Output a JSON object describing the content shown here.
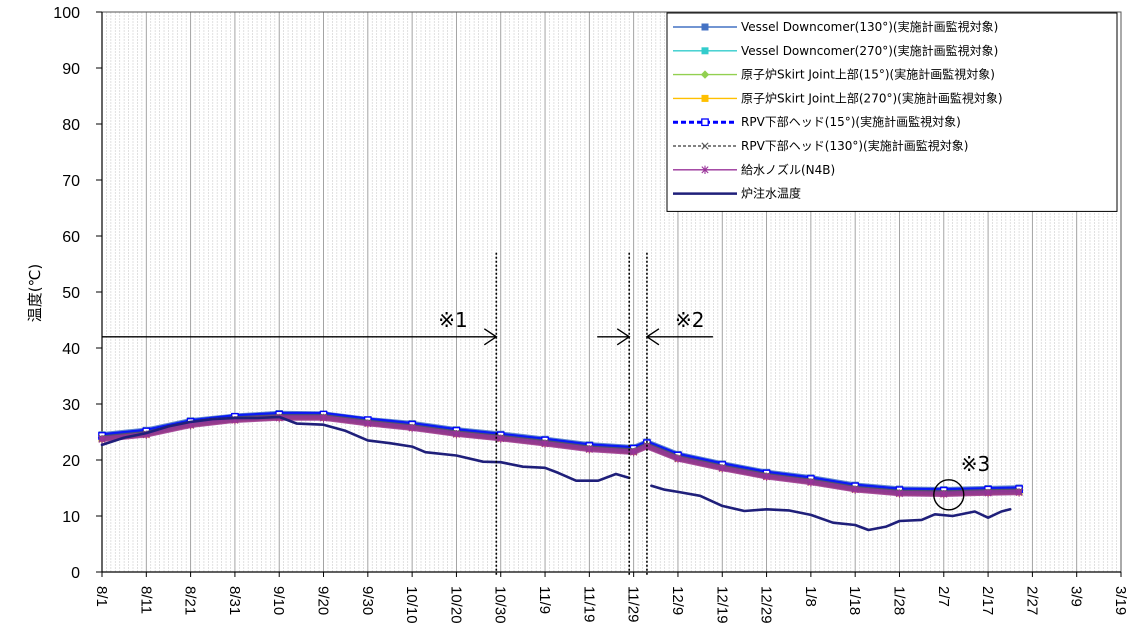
{
  "chart_data": {
    "type": "line",
    "title": "",
    "ylabel": "温度(℃)",
    "xlabel": "",
    "ylim": [
      0,
      100
    ],
    "yticks": [
      0,
      10,
      20,
      30,
      40,
      50,
      60,
      70,
      80,
      90,
      100
    ],
    "xrange": [
      "8/1",
      "3/19"
    ],
    "xtick_labels": [
      "8/1",
      "8/11",
      "8/21",
      "8/31",
      "9/10",
      "9/20",
      "9/30",
      "10/10",
      "10/20",
      "10/30",
      "11/9",
      "11/19",
      "11/29",
      "12/9",
      "12/19",
      "12/29",
      "1/8",
      "1/18",
      "1/28",
      "2/7",
      "2/17",
      "2/27",
      "3/9",
      "3/19"
    ],
    "grid": "vertical daily",
    "legend_position": "top-right",
    "series": [
      {
        "name": "Vessel Downcomer(130°)(実施計画監視対象)",
        "color": "#4472c4",
        "marker": "square-small",
        "points": [
          [
            "8/1",
            24.5
          ],
          [
            "8/11",
            25.3
          ],
          [
            "8/21",
            27.0
          ],
          [
            "8/31",
            27.8
          ],
          [
            "9/10",
            28.3
          ],
          [
            "9/20",
            28.2
          ],
          [
            "9/30",
            27.2
          ],
          [
            "10/10",
            26.5
          ],
          [
            "10/20",
            25.4
          ],
          [
            "10/30",
            24.6
          ],
          [
            "11/9",
            23.7
          ],
          [
            "11/19",
            22.7
          ],
          [
            "11/29",
            22.2
          ],
          [
            "12/2",
            23.2
          ],
          [
            "12/9",
            21.0
          ],
          [
            "12/19",
            19.3
          ],
          [
            "12/29",
            17.8
          ],
          [
            "1/8",
            16.8
          ],
          [
            "1/18",
            15.5
          ],
          [
            "1/28",
            14.8
          ],
          [
            "2/7",
            14.7
          ],
          [
            "2/17",
            14.9
          ],
          [
            "2/24",
            15.0
          ]
        ]
      },
      {
        "name": "Vessel Downcomer(270°)(実施計画監視対象)",
        "color": "#33cccc",
        "marker": "square-small",
        "points": [
          [
            "8/1",
            24.2
          ],
          [
            "8/11",
            25.0
          ],
          [
            "8/21",
            26.8
          ],
          [
            "8/31",
            27.6
          ],
          [
            "9/10",
            28.0
          ],
          [
            "9/20",
            28.0
          ],
          [
            "9/30",
            27.0
          ],
          [
            "10/10",
            26.2
          ],
          [
            "10/20",
            25.1
          ],
          [
            "10/30",
            24.3
          ],
          [
            "11/9",
            23.4
          ],
          [
            "11/19",
            22.4
          ],
          [
            "11/29",
            21.9
          ],
          [
            "12/2",
            22.9
          ],
          [
            "12/9",
            20.7
          ],
          [
            "12/19",
            19.0
          ],
          [
            "12/29",
            17.5
          ],
          [
            "1/8",
            16.5
          ],
          [
            "1/18",
            15.2
          ],
          [
            "1/28",
            14.5
          ],
          [
            "2/7",
            14.4
          ],
          [
            "2/17",
            14.6
          ],
          [
            "2/24",
            14.7
          ]
        ]
      },
      {
        "name": "原子炉Skirt Joint上部(15°)(実施計画監視対象)",
        "color": "#92d050",
        "marker": "diamond",
        "points": [
          [
            "8/1",
            24.0
          ],
          [
            "8/11",
            24.8
          ],
          [
            "8/21",
            26.5
          ],
          [
            "8/31",
            27.4
          ],
          [
            "9/10",
            27.8
          ],
          [
            "9/20",
            27.8
          ],
          [
            "9/30",
            26.8
          ],
          [
            "10/10",
            26.0
          ],
          [
            "10/20",
            24.9
          ],
          [
            "10/30",
            24.1
          ],
          [
            "11/9",
            23.2
          ],
          [
            "11/19",
            22.2
          ],
          [
            "11/29",
            21.7
          ],
          [
            "12/2",
            22.7
          ],
          [
            "12/9",
            20.5
          ],
          [
            "12/19",
            18.8
          ],
          [
            "12/29",
            17.3
          ],
          [
            "1/8",
            16.3
          ],
          [
            "1/18",
            15.0
          ],
          [
            "1/28",
            14.3
          ],
          [
            "2/7",
            14.2
          ],
          [
            "2/17",
            14.4
          ],
          [
            "2/24",
            14.5
          ]
        ]
      },
      {
        "name": "原子炉Skirt Joint上部(270°)(実施計画監視対象)",
        "color": "#ffc000",
        "marker": "square",
        "points": [
          [
            "8/1",
            23.8
          ],
          [
            "8/11",
            24.6
          ],
          [
            "8/21",
            26.3
          ],
          [
            "8/31",
            27.2
          ],
          [
            "9/10",
            27.6
          ],
          [
            "9/20",
            27.6
          ],
          [
            "9/30",
            26.6
          ],
          [
            "10/10",
            25.8
          ],
          [
            "10/20",
            24.7
          ],
          [
            "10/30",
            23.9
          ],
          [
            "11/9",
            23.0
          ],
          [
            "11/19",
            22.0
          ],
          [
            "11/29",
            21.5
          ],
          [
            "12/2",
            22.5
          ],
          [
            "12/9",
            20.3
          ],
          [
            "12/19",
            18.6
          ],
          [
            "12/29",
            17.1
          ],
          [
            "1/8",
            16.1
          ],
          [
            "1/18",
            14.8
          ],
          [
            "1/28",
            14.1
          ],
          [
            "2/7",
            14.0
          ],
          [
            "2/17",
            14.2
          ],
          [
            "2/24",
            14.3
          ]
        ]
      },
      {
        "name": "RPV下部ヘッド(15°)(実施計画監視対象)",
        "color": "#0000ff",
        "marker": "square-open",
        "points": [
          [
            "8/1",
            24.3
          ],
          [
            "8/11",
            25.1
          ],
          [
            "8/21",
            26.8
          ],
          [
            "8/31",
            27.7
          ],
          [
            "9/10",
            28.1
          ],
          [
            "9/20",
            28.1
          ],
          [
            "9/30",
            27.1
          ],
          [
            "10/10",
            26.3
          ],
          [
            "10/20",
            25.2
          ],
          [
            "10/30",
            24.4
          ],
          [
            "11/9",
            23.5
          ],
          [
            "11/19",
            22.5
          ],
          [
            "11/29",
            22.0
          ],
          [
            "12/2",
            23.0
          ],
          [
            "12/9",
            20.8
          ],
          [
            "12/19",
            19.1
          ],
          [
            "12/29",
            17.6
          ],
          [
            "1/8",
            16.6
          ],
          [
            "1/18",
            15.3
          ],
          [
            "1/28",
            14.6
          ],
          [
            "2/7",
            14.5
          ],
          [
            "2/17",
            14.7
          ],
          [
            "2/24",
            14.8
          ]
        ]
      },
      {
        "name": "RPV下部ヘッド(130°)(実施計画監視対象)",
        "color": "#595959",
        "marker": "x",
        "points": [
          [
            "8/1",
            23.9
          ],
          [
            "8/11",
            24.7
          ],
          [
            "8/21",
            26.4
          ],
          [
            "8/31",
            27.3
          ],
          [
            "9/10",
            27.7
          ],
          [
            "9/20",
            27.7
          ],
          [
            "9/30",
            26.7
          ],
          [
            "10/10",
            25.9
          ],
          [
            "10/20",
            24.8
          ],
          [
            "10/30",
            24.0
          ],
          [
            "11/9",
            23.1
          ],
          [
            "11/19",
            22.1
          ],
          [
            "11/29",
            21.6
          ],
          [
            "12/2",
            22.6
          ],
          [
            "12/9",
            20.4
          ],
          [
            "12/19",
            18.7
          ],
          [
            "12/29",
            17.2
          ],
          [
            "1/8",
            16.2
          ],
          [
            "1/18",
            14.9
          ],
          [
            "1/28",
            14.2
          ],
          [
            "2/7",
            14.1
          ],
          [
            "2/17",
            14.3
          ],
          [
            "2/24",
            14.4
          ]
        ]
      },
      {
        "name": "給水ノズル(N4B)",
        "color": "#993399",
        "marker": "star",
        "points": [
          [
            "8/1",
            23.7
          ],
          [
            "8/11",
            24.5
          ],
          [
            "8/21",
            26.2
          ],
          [
            "8/31",
            27.1
          ],
          [
            "9/10",
            27.5
          ],
          [
            "9/20",
            27.5
          ],
          [
            "9/30",
            26.5
          ],
          [
            "10/10",
            25.7
          ],
          [
            "10/20",
            24.6
          ],
          [
            "10/30",
            23.8
          ],
          [
            "11/9",
            22.9
          ],
          [
            "11/19",
            21.9
          ],
          [
            "11/29",
            21.4
          ],
          [
            "12/2",
            22.4
          ],
          [
            "12/9",
            20.2
          ],
          [
            "12/19",
            18.5
          ],
          [
            "12/29",
            17.0
          ],
          [
            "1/8",
            16.0
          ],
          [
            "1/18",
            14.7
          ],
          [
            "1/28",
            14.0
          ],
          [
            "2/7",
            13.9
          ],
          [
            "2/17",
            14.1
          ],
          [
            "2/24",
            14.2
          ]
        ]
      },
      {
        "name": "炉注水温度",
        "color": "#1f1f7a",
        "marker": "none",
        "width": 2.6,
        "segments": [
          [
            [
              "8/1",
              22.7
            ],
            [
              "8/6",
              24.0
            ],
            [
              "8/11",
              24.8
            ],
            [
              "8/16",
              26.0
            ],
            [
              "8/21",
              26.8
            ],
            [
              "8/26",
              27.3
            ],
            [
              "8/31",
              27.5
            ],
            [
              "9/5",
              27.5
            ],
            [
              "9/10",
              27.7
            ],
            [
              "9/14",
              26.5
            ],
            [
              "9/20",
              26.3
            ],
            [
              "9/25",
              25.2
            ],
            [
              "9/30",
              23.5
            ],
            [
              "10/5",
              23.0
            ],
            [
              "10/10",
              22.4
            ],
            [
              "10/13",
              21.4
            ],
            [
              "10/20",
              20.8
            ],
            [
              "10/26",
              19.7
            ],
            [
              "10/30",
              19.6
            ],
            [
              "11/4",
              18.8
            ],
            [
              "11/9",
              18.6
            ],
            [
              "11/12",
              17.7
            ],
            [
              "11/16",
              16.3
            ],
            [
              "11/21",
              16.3
            ],
            [
              "11/25",
              17.5
            ],
            [
              "11/28",
              16.8
            ]
          ],
          [
            [
              "12/3",
              15.4
            ],
            [
              "12/6",
              14.7
            ],
            [
              "12/9",
              14.3
            ],
            [
              "12/14",
              13.6
            ],
            [
              "12/19",
              11.8
            ],
            [
              "12/24",
              10.9
            ],
            [
              "12/29",
              11.2
            ],
            [
              "1/3",
              11.0
            ],
            [
              "1/8",
              10.2
            ],
            [
              "1/13",
              8.8
            ],
            [
              "1/18",
              8.4
            ],
            [
              "1/21",
              7.5
            ],
            [
              "1/25",
              8.1
            ],
            [
              "1/28",
              9.1
            ],
            [
              "2/2",
              9.3
            ],
            [
              "2/5",
              10.3
            ],
            [
              "2/9",
              10.0
            ],
            [
              "2/14",
              10.8
            ],
            [
              "2/17",
              9.7
            ],
            [
              "2/20",
              10.8
            ],
            [
              "2/22",
              11.2
            ]
          ]
        ]
      }
    ],
    "annotations": [
      {
        "text": "※1",
        "type": "arrow-right",
        "from": "8/1",
        "to": "10/29",
        "y": 42
      },
      {
        "text": "※2",
        "type": "arrows-converging",
        "left": "11/28",
        "right": "12/2",
        "y": 42
      },
      {
        "text": "※3",
        "type": "circle",
        "x": "2/7",
        "y": 14.5
      }
    ],
    "vlines": [
      "10/29",
      "11/28",
      "12/2"
    ]
  }
}
